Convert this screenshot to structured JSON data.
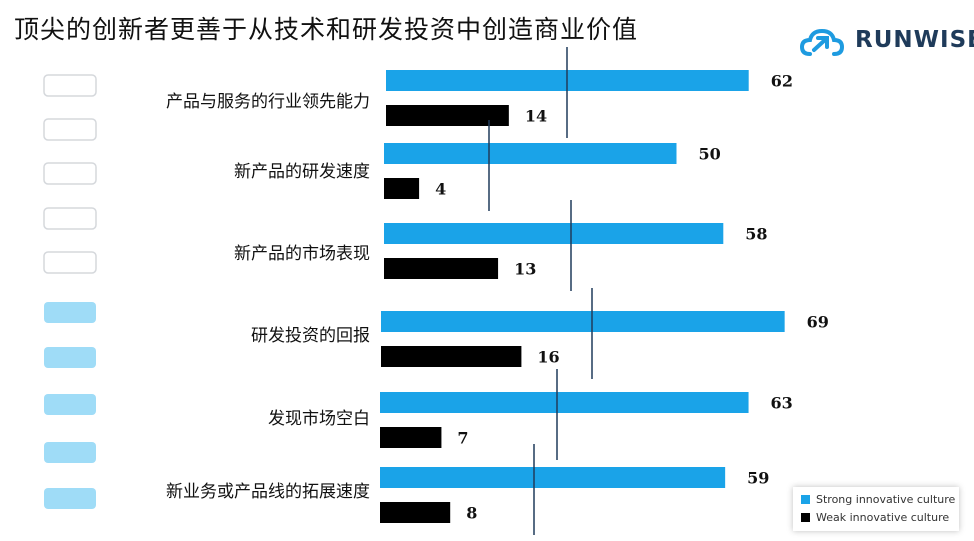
{
  "title": "顶尖的创新者更善于从技术和研发投资中创造商业价值",
  "logo": {
    "text": "RUNWISE",
    "icon": "cloud-arrow-icon",
    "color": "#1f3b5a",
    "icon_color": "#1e9be0"
  },
  "legend": [
    {
      "label": "Strong innovative culture",
      "color": "#1aa3e8"
    },
    {
      "label": "Weak innovative culture",
      "color": "#000000"
    }
  ],
  "side_tabs": {
    "outline_count": 5,
    "filled_count": 5,
    "outline_color": "#d5d8dc",
    "filled_color": "#9fdcf7"
  },
  "chart_data": {
    "type": "bar",
    "orientation": "horizontal",
    "categories": [
      "产品与服务的行业领先能力",
      "新产品的研发速度",
      "新产品的市场表现",
      "研发投资的回报",
      "发现市场空白",
      "新业务或产品线的拓展速度"
    ],
    "series": [
      {
        "name": "Strong innovative culture",
        "values": [
          62,
          50,
          58,
          69,
          63,
          59
        ],
        "color": "#1aa3e8"
      },
      {
        "name": "Weak innovative culture",
        "values": [
          14,
          4,
          13,
          16,
          7,
          8
        ],
        "color": "#000000"
      }
    ],
    "xlim": [
      0,
      70
    ],
    "grid": false,
    "legend_position": "bottom-right"
  }
}
